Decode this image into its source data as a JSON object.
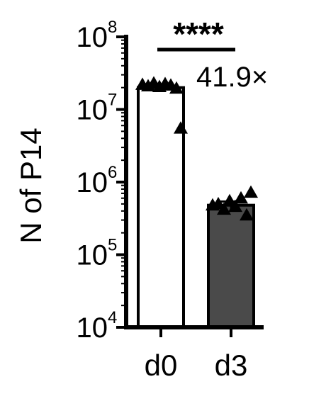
{
  "chart_data": {
    "type": "bar",
    "ylabel": "N of P14",
    "yscale": "log",
    "ylim": [
      10000,
      100000000
    ],
    "yticks": [
      {
        "base": "10",
        "exp": "4"
      },
      {
        "base": "10",
        "exp": "5"
      },
      {
        "base": "10",
        "exp": "6"
      },
      {
        "base": "10",
        "exp": "7"
      },
      {
        "base": "10",
        "exp": "8"
      }
    ],
    "categories": [
      "d0",
      "d3"
    ],
    "values": [
      20000000,
      480000
    ],
    "errors": [
      1500000,
      60000
    ],
    "bar_colors": [
      "#ffffff",
      "#4a4a4a"
    ],
    "points": [
      [
        22000000,
        21000000,
        23000000,
        20500000,
        22500000,
        21500000,
        19500000,
        5500000
      ],
      [
        480000,
        500000,
        420000,
        550000,
        460000,
        600000,
        350000,
        720000
      ]
    ],
    "significance": "****",
    "fold_change": "41.9×",
    "grid": false
  }
}
